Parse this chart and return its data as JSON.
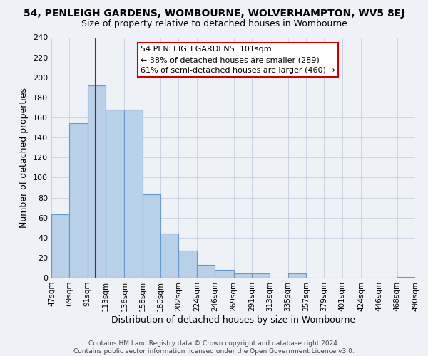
{
  "title": "54, PENLEIGH GARDENS, WOMBOURNE, WOLVERHAMPTON, WV5 8EJ",
  "subtitle": "Size of property relative to detached houses in Wombourne",
  "xlabel": "Distribution of detached houses by size in Wombourne",
  "ylabel": "Number of detached properties",
  "bin_edges": [
    47,
    69,
    91,
    113,
    136,
    158,
    180,
    202,
    224,
    246,
    269,
    291,
    313,
    335,
    357,
    379,
    401,
    424,
    446,
    468,
    490
  ],
  "counts": [
    63,
    154,
    192,
    168,
    168,
    83,
    44,
    27,
    13,
    8,
    4,
    4,
    0,
    4,
    0,
    0,
    0,
    0,
    0,
    1
  ],
  "bar_color": "#b8d0e8",
  "bar_edge_color": "#6699cc",
  "property_line_x": 101,
  "annotation_title": "54 PENLEIGH GARDENS: 101sqm",
  "annotation_line1": "← 38% of detached houses are smaller (289)",
  "annotation_line2": "61% of semi-detached houses are larger (460) →",
  "annotation_box_color": "#ffffff",
  "annotation_box_edge": "#cc0000",
  "property_line_color": "#cc0000",
  "ylim": [
    0,
    240
  ],
  "yticks": [
    0,
    20,
    40,
    60,
    80,
    100,
    120,
    140,
    160,
    180,
    200,
    220,
    240
  ],
  "tick_labels": [
    "47sqm",
    "69sqm",
    "91sqm",
    "113sqm",
    "136sqm",
    "158sqm",
    "180sqm",
    "202sqm",
    "224sqm",
    "246sqm",
    "269sqm",
    "291sqm",
    "313sqm",
    "335sqm",
    "357sqm",
    "379sqm",
    "401sqm",
    "424sqm",
    "446sqm",
    "468sqm",
    "490sqm"
  ],
  "footer_line1": "Contains HM Land Registry data © Crown copyright and database right 2024.",
  "footer_line2": "Contains public sector information licensed under the Open Government Licence v3.0.",
  "background_color": "#eef2f7",
  "plot_background": "#eef2f7"
}
